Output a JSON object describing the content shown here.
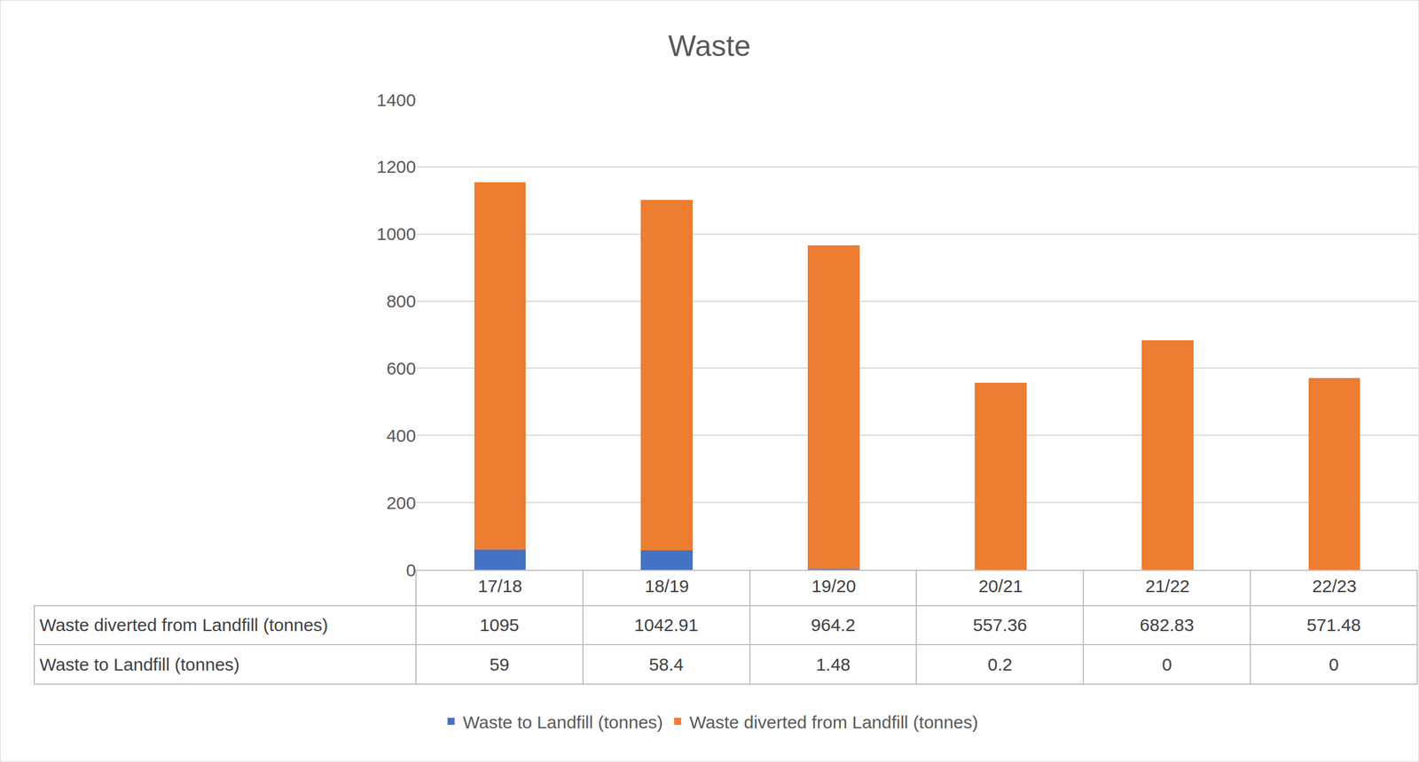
{
  "chart_data": {
    "type": "bar",
    "title": "Waste",
    "categories": [
      "17/18",
      "18/19",
      "19/20",
      "20/21",
      "21/22",
      "22/23"
    ],
    "series": [
      {
        "name": "Waste to Landfill (tonnes)",
        "color": "#4472c4",
        "values": [
          59,
          58.4,
          1.48,
          0.2,
          0,
          0
        ]
      },
      {
        "name": "Waste diverted from Landfill (tonnes)",
        "color": "#ed7d31",
        "values": [
          1095,
          1042.91,
          964.2,
          557.36,
          682.83,
          571.48
        ]
      }
    ],
    "stacked": true,
    "ylim": [
      0,
      1400
    ],
    "yticks": [
      0,
      200,
      400,
      600,
      800,
      1000,
      1200,
      1400
    ],
    "grid": true,
    "legend": "bottom"
  }
}
